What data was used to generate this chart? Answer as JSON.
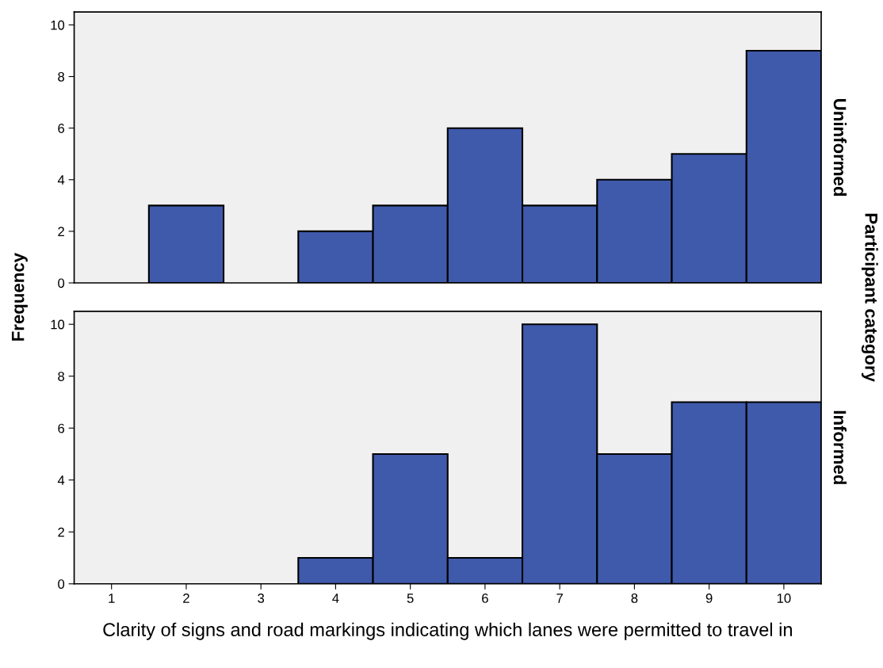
{
  "chart_data": [
    {
      "type": "histogram",
      "y2label": "Uninformed",
      "ylabel": "Frequency",
      "annotations": [
        "Participant category"
      ],
      "bins": [
        0.5,
        1.5,
        2.5,
        3.5,
        4.5,
        5.5,
        6.5,
        7.5,
        8.5,
        9.5,
        10.5
      ],
      "values": [
        0,
        3,
        0,
        2,
        3,
        6,
        3,
        4,
        5,
        9
      ],
      "color": "#3f5aab",
      "xlim": [
        0.5,
        10.5
      ],
      "xticks": [
        1,
        2,
        3,
        4,
        5,
        6,
        7,
        8,
        9,
        10
      ],
      "ylim": [
        0,
        10.5
      ],
      "yticks": [
        0,
        2,
        4,
        6,
        8,
        10
      ],
      "tick_labels": "y",
      "grid": false,
      "legend": false
    },
    {
      "type": "histogram",
      "y2label": "Informed",
      "xlabel": "Clarity of signs and road markings indicating which lanes were permitted to travel in",
      "bins": [
        0.5,
        1.5,
        2.5,
        3.5,
        4.5,
        5.5,
        6.5,
        7.5,
        8.5,
        9.5,
        10.5
      ],
      "values": [
        0,
        0,
        0,
        1,
        5,
        1,
        10,
        5,
        7,
        7
      ],
      "color": "#3f5aab",
      "xlim": [
        0.5,
        10.5
      ],
      "xticks": [
        1,
        2,
        3,
        4,
        5,
        6,
        7,
        8,
        9,
        10
      ],
      "ylim": [
        0,
        10.5
      ],
      "yticks": [
        0,
        2,
        4,
        6,
        8,
        10
      ],
      "grid": false,
      "legend": false
    }
  ]
}
